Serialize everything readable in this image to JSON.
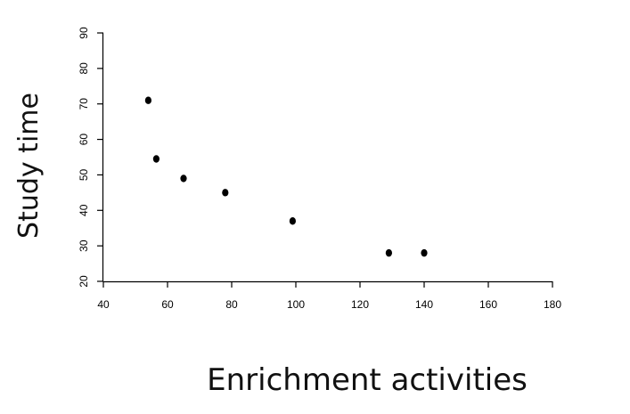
{
  "chart_data": {
    "type": "scatter",
    "title": "",
    "xlabel": "Enrichment activities",
    "ylabel": "Study time",
    "xlim": [
      40,
      180
    ],
    "ylim": [
      20,
      90
    ],
    "xticks": [
      40,
      60,
      80,
      100,
      120,
      140,
      160,
      180
    ],
    "yticks": [
      20,
      30,
      40,
      50,
      60,
      70,
      80,
      90
    ],
    "grid": false,
    "points": [
      {
        "x": 54,
        "y": 71
      },
      {
        "x": 56.5,
        "y": 54.5
      },
      {
        "x": 65,
        "y": 49
      },
      {
        "x": 78,
        "y": 45
      },
      {
        "x": 99,
        "y": 37
      },
      {
        "x": 129,
        "y": 28
      },
      {
        "x": 140,
        "y": 28
      }
    ],
    "colors": {
      "axis": "#000000",
      "point": "#000000",
      "label": "#111111"
    }
  }
}
